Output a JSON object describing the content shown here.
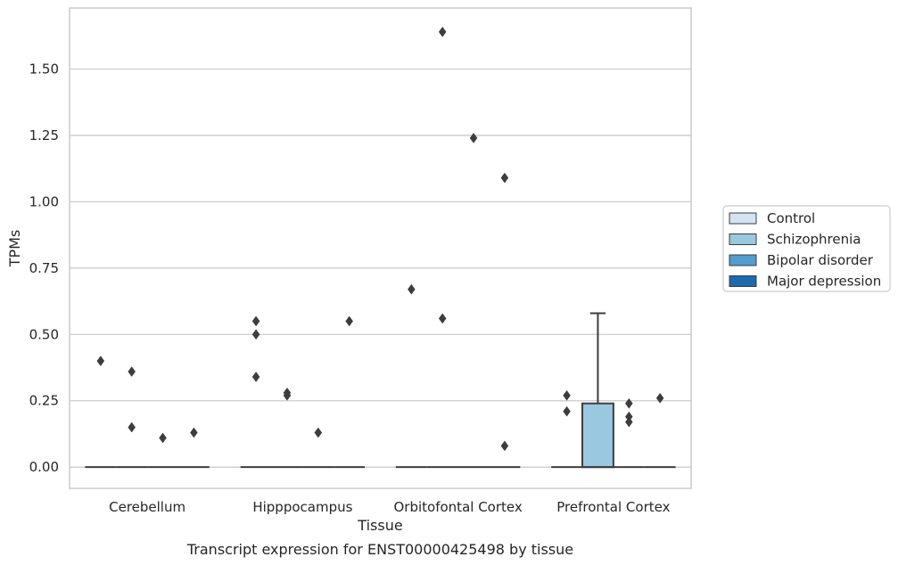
{
  "chart_data": {
    "type": "box",
    "ylabel": "TPMs",
    "xlabel": "Tissue",
    "caption": "Transcript expression for ENST00000425498 by tissue",
    "ylim": [
      -0.08,
      1.73
    ],
    "yticks": [
      "0.00",
      "0.25",
      "0.50",
      "0.75",
      "1.00",
      "1.25",
      "1.50"
    ],
    "ytick_values": [
      0,
      0.25,
      0.5,
      0.75,
      1.0,
      1.25,
      1.5
    ],
    "grid": true,
    "legend_position": "right",
    "categories": [
      "Cerebellum",
      "Hipppocampus",
      "Orbitofontal Cortex",
      "Prefrontal Cortex"
    ],
    "series": [
      {
        "name": "Control",
        "color": "#d2e3f3",
        "boxes": [
          {
            "q1": 0,
            "median": 0,
            "q3": 0,
            "whisker_low": 0,
            "whisker_high": 0,
            "outliers": [
              0.4
            ]
          },
          {
            "q1": 0,
            "median": 0,
            "q3": 0,
            "whisker_low": 0,
            "whisker_high": 0,
            "outliers": [
              0.55,
              0.5,
              0.34
            ]
          },
          {
            "q1": 0,
            "median": 0,
            "q3": 0,
            "whisker_low": 0,
            "whisker_high": 0,
            "outliers": [
              0.67
            ]
          },
          {
            "q1": 0,
            "median": 0,
            "q3": 0,
            "whisker_low": 0,
            "whisker_high": 0,
            "outliers": [
              0.27,
              0.21
            ]
          }
        ]
      },
      {
        "name": "Schizophrenia",
        "color": "#9ac8e0",
        "boxes": [
          {
            "q1": 0,
            "median": 0,
            "q3": 0,
            "whisker_low": 0,
            "whisker_high": 0,
            "outliers": [
              0.36,
              0.15
            ]
          },
          {
            "q1": 0,
            "median": 0,
            "q3": 0,
            "whisker_low": 0,
            "whisker_high": 0,
            "outliers": [
              0.28,
              0.27
            ]
          },
          {
            "q1": 0,
            "median": 0,
            "q3": 0,
            "whisker_low": 0,
            "whisker_high": 0,
            "outliers": [
              1.64,
              0.56
            ]
          },
          {
            "q1": 0,
            "median": 0,
            "q3": 0.24,
            "whisker_low": 0,
            "whisker_high": 0.58,
            "outliers": []
          }
        ]
      },
      {
        "name": "Bipolar disorder",
        "color": "#529dcc",
        "boxes": [
          {
            "q1": 0,
            "median": 0,
            "q3": 0,
            "whisker_low": 0,
            "whisker_high": 0,
            "outliers": [
              0.11
            ]
          },
          {
            "q1": 0,
            "median": 0,
            "q3": 0,
            "whisker_low": 0,
            "whisker_high": 0,
            "outliers": [
              0.13
            ]
          },
          {
            "q1": 0,
            "median": 0,
            "q3": 0,
            "whisker_low": 0,
            "whisker_high": 0,
            "outliers": [
              1.24
            ]
          },
          {
            "q1": 0,
            "median": 0,
            "q3": 0,
            "whisker_low": 0,
            "whisker_high": 0,
            "outliers": [
              0.24,
              0.19,
              0.17
            ]
          }
        ]
      },
      {
        "name": "Major depression",
        "color": "#1c6aaf",
        "boxes": [
          {
            "q1": 0,
            "median": 0,
            "q3": 0,
            "whisker_low": 0,
            "whisker_high": 0,
            "outliers": [
              0.13
            ]
          },
          {
            "q1": 0,
            "median": 0,
            "q3": 0,
            "whisker_low": 0,
            "whisker_high": 0,
            "outliers": [
              0.55
            ]
          },
          {
            "q1": 0,
            "median": 0,
            "q3": 0,
            "whisker_low": 0,
            "whisker_high": 0,
            "outliers": [
              1.09,
              0.08
            ]
          },
          {
            "q1": 0,
            "median": 0,
            "q3": 0,
            "whisker_low": 0,
            "whisker_high": 0,
            "outliers": [
              0.26
            ]
          }
        ]
      }
    ]
  }
}
